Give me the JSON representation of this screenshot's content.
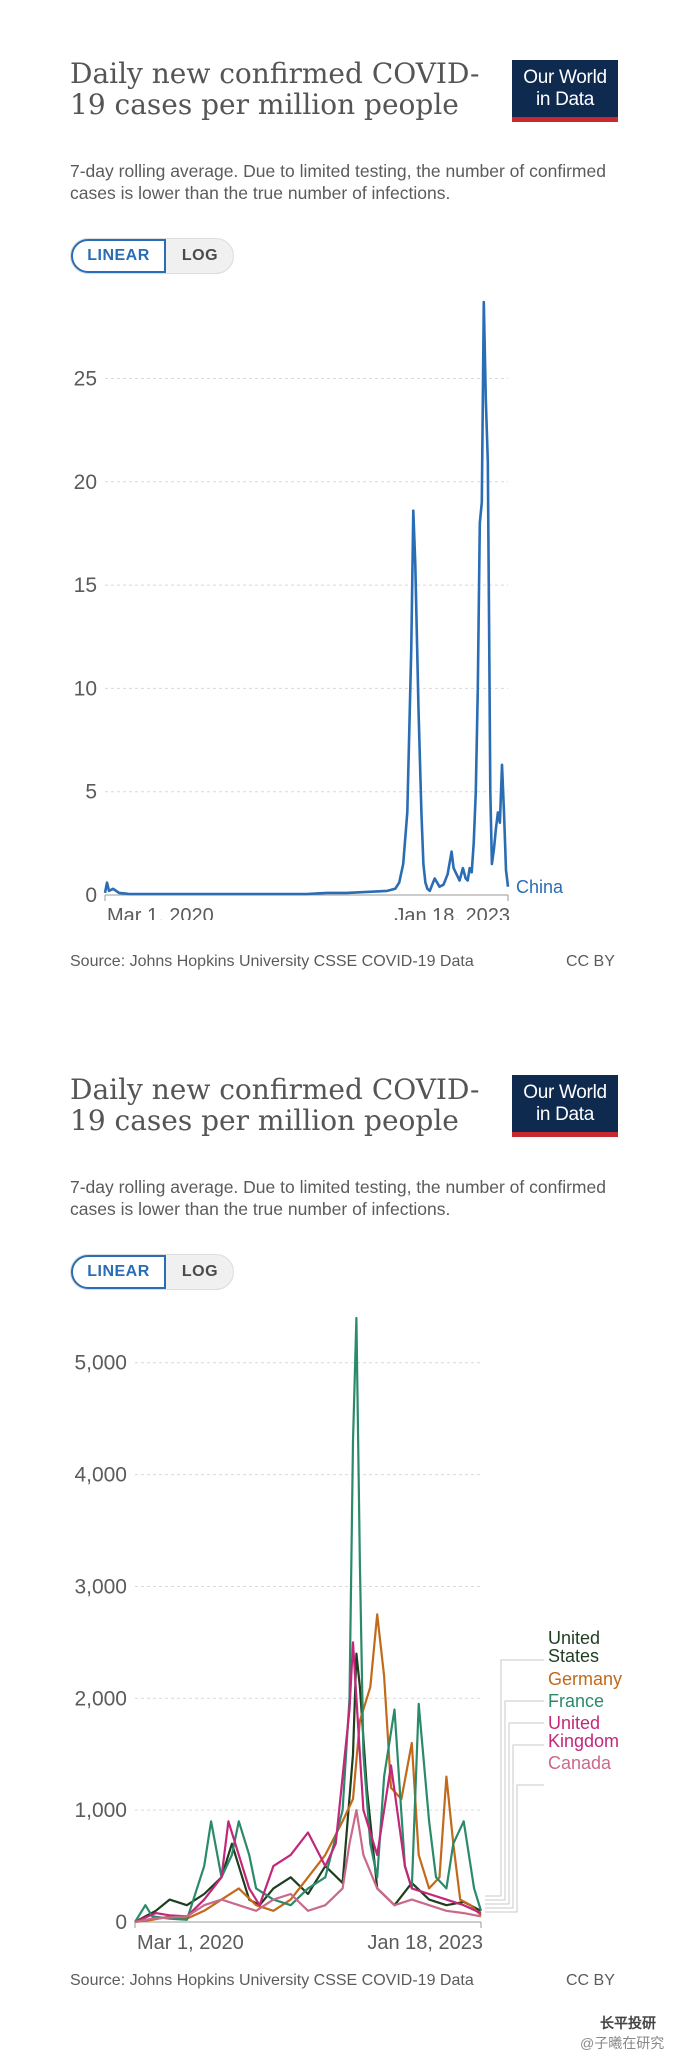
{
  "charts": [
    {
      "header": {
        "title": "Daily new confirmed COVID-19 cases per million people",
        "subtitle": "7-day rolling average. Due to limited testing, the number of confirmed cases is lower than the true number of infections.",
        "logo_line1": "Our World",
        "logo_line2": "in Data"
      },
      "toggle": {
        "linear": "LINEAR",
        "log": "LOG"
      },
      "footer": {
        "source": "Source: Johns Hopkins University CSSE COVID-19 Data",
        "license": "CC BY"
      }
    },
    {
      "header": {
        "title": "Daily new confirmed COVID-19 cases per million people",
        "subtitle": "7-day rolling average. Due to limited testing, the number of confirmed cases is lower than the true number of infections.",
        "logo_line1": "Our World",
        "logo_line2": "in Data"
      },
      "toggle": {
        "linear": "LINEAR",
        "log": "LOG"
      },
      "footer": {
        "source": "Source: Johns Hopkins University CSSE COVID-19 Data",
        "license": "CC BY"
      }
    }
  ],
  "watermark": {
    "line1": "长平投研",
    "line2": "@子曦在研究"
  },
  "colors": {
    "china": "#2a6db5",
    "us": "#1f3d1f",
    "germany": "#c26a1a",
    "france": "#2a8a6a",
    "uk": "#c2277a",
    "canada": "#c86a8a",
    "grid": "#d9d9d9",
    "axis_text": "#5b5b5b"
  },
  "chart_data": [
    {
      "type": "line",
      "title": "Daily new confirmed COVID-19 cases per million people",
      "x_ticks": [
        "Mar 1, 2020",
        "Jan 18, 2023"
      ],
      "y_ticks": [
        0,
        5,
        10,
        15,
        20,
        25
      ],
      "ylim": [
        0,
        28.7
      ],
      "x_domain": [
        0,
        1
      ],
      "series": [
        {
          "name": "China",
          "color": "#2a6db5",
          "x": [
            0,
            0.005,
            0.01,
            0.02,
            0.035,
            0.06,
            0.12,
            0.2,
            0.3,
            0.4,
            0.5,
            0.55,
            0.6,
            0.65,
            0.7,
            0.72,
            0.73,
            0.74,
            0.75,
            0.76,
            0.765,
            0.77,
            0.778,
            0.785,
            0.79,
            0.795,
            0.8,
            0.806,
            0.812,
            0.818,
            0.83,
            0.84,
            0.85,
            0.86,
            0.865,
            0.87,
            0.875,
            0.88,
            0.888,
            0.895,
            0.9,
            0.905,
            0.91,
            0.915,
            0.92,
            0.925,
            0.93,
            0.935,
            0.94,
            0.945,
            0.95,
            0.953,
            0.956,
            0.96,
            0.965,
            0.97,
            0.975,
            0.98,
            0.985,
            0.99,
            0.995,
            1.0
          ],
          "y": [
            0.1,
            0.6,
            0.2,
            0.3,
            0.1,
            0.05,
            0.05,
            0.05,
            0.05,
            0.05,
            0.05,
            0.1,
            0.1,
            0.15,
            0.2,
            0.3,
            0.6,
            1.5,
            4,
            12,
            18.6,
            16,
            9,
            4,
            1.5,
            0.6,
            0.3,
            0.2,
            0.5,
            0.8,
            0.4,
            0.5,
            1.0,
            2.1,
            1.3,
            1.1,
            0.9,
            0.7,
            1.3,
            0.8,
            0.7,
            1.3,
            1.1,
            2.5,
            5,
            10,
            18,
            19,
            28.7,
            24,
            21,
            13,
            5,
            1.5,
            2.2,
            3.2,
            4,
            3.5,
            6.3,
            4,
            1.2,
            0.4
          ]
        }
      ]
    },
    {
      "type": "line",
      "title": "Daily new confirmed COVID-19 cases per million people",
      "x_ticks": [
        "Mar 1, 2020",
        "Jan 18, 2023"
      ],
      "y_ticks": [
        0,
        1000,
        2000,
        3000,
        4000,
        5000
      ],
      "ylim": [
        0,
        5400
      ],
      "x_domain": [
        0,
        1
      ],
      "series": [
        {
          "name": "United States",
          "color": "#1f3d1f",
          "x": [
            0,
            0.03,
            0.06,
            0.1,
            0.15,
            0.2,
            0.25,
            0.28,
            0.3,
            0.33,
            0.36,
            0.4,
            0.45,
            0.5,
            0.55,
            0.6,
            0.63,
            0.64,
            0.65,
            0.67,
            0.7,
            0.75,
            0.8,
            0.85,
            0.9,
            0.95,
            1.0
          ],
          "y": [
            0,
            50,
            100,
            200,
            150,
            250,
            400,
            700,
            500,
            200,
            150,
            300,
            400,
            250,
            500,
            350,
            1500,
            2400,
            2100,
            1200,
            300,
            150,
            350,
            200,
            150,
            180,
            100
          ]
        },
        {
          "name": "Germany",
          "color": "#c26a1a",
          "x": [
            0,
            0.05,
            0.1,
            0.15,
            0.2,
            0.25,
            0.3,
            0.35,
            0.4,
            0.45,
            0.5,
            0.55,
            0.6,
            0.63,
            0.65,
            0.68,
            0.7,
            0.72,
            0.74,
            0.77,
            0.8,
            0.82,
            0.85,
            0.88,
            0.9,
            0.92,
            0.94,
            0.97,
            1.0
          ],
          "y": [
            0,
            20,
            50,
            30,
            100,
            200,
            300,
            150,
            100,
            200,
            400,
            600,
            900,
            1100,
            1800,
            2100,
            2750,
            2200,
            1200,
            1100,
            1600,
            600,
            300,
            400,
            1300,
            700,
            200,
            150,
            60
          ]
        },
        {
          "name": "France",
          "color": "#2a8a6a",
          "x": [
            0,
            0.03,
            0.05,
            0.1,
            0.15,
            0.2,
            0.22,
            0.25,
            0.28,
            0.3,
            0.33,
            0.35,
            0.4,
            0.45,
            0.5,
            0.55,
            0.6,
            0.62,
            0.63,
            0.64,
            0.65,
            0.66,
            0.68,
            0.7,
            0.72,
            0.75,
            0.78,
            0.8,
            0.82,
            0.85,
            0.87,
            0.9,
            0.92,
            0.95,
            0.98,
            1.0
          ],
          "y": [
            0,
            150,
            50,
            30,
            20,
            500,
            900,
            400,
            600,
            900,
            600,
            300,
            200,
            150,
            300,
            400,
            1000,
            2000,
            4300,
            5400,
            3200,
            1500,
            700,
            400,
            1300,
            1900,
            500,
            300,
            1950,
            900,
            400,
            300,
            700,
            900,
            300,
            100
          ]
        },
        {
          "name": "United Kingdom",
          "color": "#c2277a",
          "x": [
            0,
            0.03,
            0.06,
            0.1,
            0.15,
            0.2,
            0.25,
            0.27,
            0.3,
            0.33,
            0.36,
            0.4,
            0.45,
            0.5,
            0.55,
            0.58,
            0.6,
            0.62,
            0.63,
            0.64,
            0.66,
            0.7,
            0.74,
            0.78,
            0.8,
            0.85,
            0.9,
            0.95,
            1.0
          ],
          "y": [
            0,
            40,
            80,
            60,
            50,
            200,
            400,
            900,
            600,
            300,
            150,
            500,
            600,
            800,
            500,
            700,
            1300,
            1900,
            2500,
            2000,
            1000,
            600,
            1400,
            500,
            300,
            250,
            200,
            150,
            80
          ]
        },
        {
          "name": "Canada",
          "color": "#c86a8a",
          "x": [
            0,
            0.05,
            0.1,
            0.15,
            0.2,
            0.25,
            0.3,
            0.35,
            0.4,
            0.45,
            0.5,
            0.55,
            0.6,
            0.62,
            0.64,
            0.66,
            0.7,
            0.75,
            0.8,
            0.85,
            0.9,
            0.95,
            1.0
          ],
          "y": [
            0,
            30,
            40,
            50,
            150,
            200,
            150,
            100,
            200,
            250,
            100,
            150,
            300,
            700,
            1000,
            600,
            300,
            150,
            200,
            150,
            100,
            80,
            50
          ]
        }
      ]
    }
  ]
}
